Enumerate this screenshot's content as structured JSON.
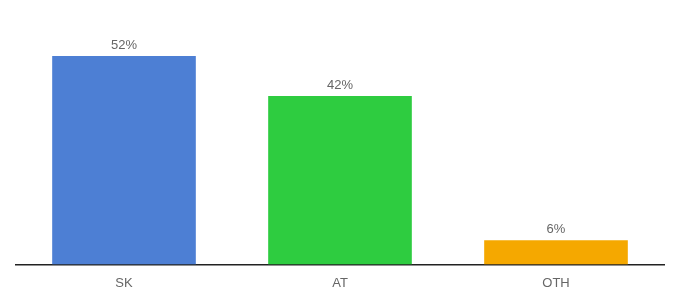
{
  "chart_data": {
    "type": "bar",
    "categories": [
      "SK",
      "AT",
      "OTH"
    ],
    "values": [
      52,
      42,
      6
    ],
    "value_labels": [
      "52%",
      "42%",
      "6%"
    ],
    "colors": [
      "#4d7fd4",
      "#2ecc40",
      "#f5a800"
    ],
    "ylim": [
      0,
      60
    ],
    "data_labels": true,
    "tick_labels": "x",
    "grid": false
  }
}
